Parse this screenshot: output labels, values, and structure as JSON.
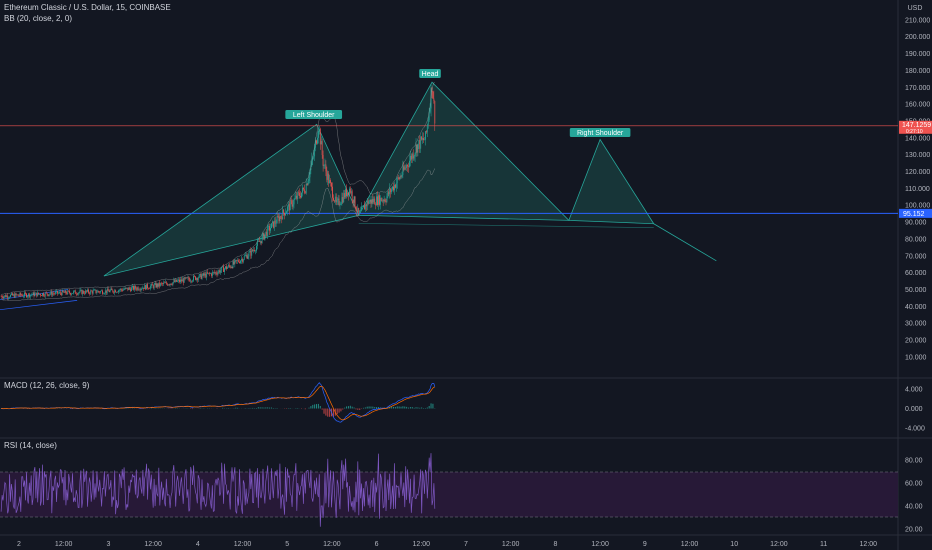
{
  "legend": {
    "symbol": "Ethereum Classic / U.S. Dollar, 15, COINBASE",
    "bb": "BB (20, close, 2, 0)",
    "macd": "MACD (12, 26, close, 9)",
    "rsi": "RSI (14, close)"
  },
  "axis": {
    "currency": "USD",
    "price_ticks": [
      "220.000",
      "210.000",
      "200.000",
      "190.000",
      "180.000",
      "170.000",
      "160.000",
      "150.000",
      "140.000",
      "130.000",
      "120.000",
      "110.000",
      "100.000",
      "90.000",
      "80.000",
      "70.000",
      "60.000",
      "50.000",
      "40.000",
      "30.000",
      "20.000",
      "10.000"
    ],
    "macd_ticks": [
      "4.000",
      "2.000",
      "0.000",
      "-2.000",
      "-4.000"
    ],
    "rsi_ticks": [
      "80.00",
      "60.00",
      "40.00",
      "20.00"
    ],
    "time_ticks": [
      "2",
      "12:00",
      "3",
      "12:00",
      "4",
      "12:00",
      "5",
      "12:00",
      "6",
      "12:00",
      "7",
      "12:00",
      "8",
      "12:00",
      "9",
      "12:00",
      "10",
      "12:00",
      "11",
      "12:00"
    ]
  },
  "badges": {
    "last_price": "147.1259",
    "last_price_sub": "0:27:10",
    "neckline_price": "95.152"
  },
  "pattern": {
    "left_shoulder": "Left Shoulder",
    "head": "Head",
    "right_shoulder": "Right Shoulder"
  },
  "colors": {
    "background": "#131722",
    "up_candle": "#26a69a",
    "down_candle": "#ef5350",
    "pattern_fill": "#1f6e62",
    "pattern_line": "#26a69a",
    "neckline": "#2962ff",
    "price_line": "#ef5350",
    "macd_line": "#2962ff",
    "signal_line": "#ff6d00",
    "rsi_line": "#7e57c2",
    "rsi_band": "#2a1a3a"
  },
  "chart_data": {
    "type": "candlestick",
    "title": "Ethereum Classic / U.S. Dollar, 15, COINBASE",
    "ylabel": "USD",
    "ylim": [
      0,
      220
    ],
    "x_range_days": [
      1.8,
      11.6
    ],
    "price_path": [
      [
        1.8,
        46
      ],
      [
        2.5,
        48
      ],
      [
        3.0,
        49
      ],
      [
        3.5,
        52
      ],
      [
        3.9,
        56
      ],
      [
        4.2,
        60
      ],
      [
        4.4,
        65
      ],
      [
        4.6,
        72
      ],
      [
        4.8,
        86
      ],
      [
        5.0,
        98
      ],
      [
        5.2,
        110
      ],
      [
        5.3,
        130
      ],
      [
        5.35,
        148
      ],
      [
        5.4,
        126
      ],
      [
        5.55,
        100
      ],
      [
        5.7,
        110
      ],
      [
        5.8,
        94
      ],
      [
        5.9,
        102
      ],
      [
        6.1,
        104
      ],
      [
        6.3,
        120
      ],
      [
        6.45,
        135
      ],
      [
        6.55,
        140
      ],
      [
        6.62,
        172
      ],
      [
        6.66,
        147
      ]
    ],
    "last_price": 147.1259,
    "neckline": 95.152,
    "head_and_shoulders": {
      "left_shoulder": {
        "x": 5.33,
        "y": 148
      },
      "head": {
        "x": 6.62,
        "y": 173
      },
      "right_shoulder": {
        "x": 8.5,
        "y": 139
      },
      "trough_1": {
        "x": 5.8,
        "y": 94
      },
      "trough_2": {
        "x": 8.15,
        "y": 91
      },
      "target": {
        "x": 9.8,
        "y": 67
      }
    },
    "macd": {
      "ylim": [
        -5,
        5
      ]
    },
    "rsi": {
      "ylim": [
        0,
        100
      ],
      "band": [
        30,
        70
      ]
    }
  }
}
